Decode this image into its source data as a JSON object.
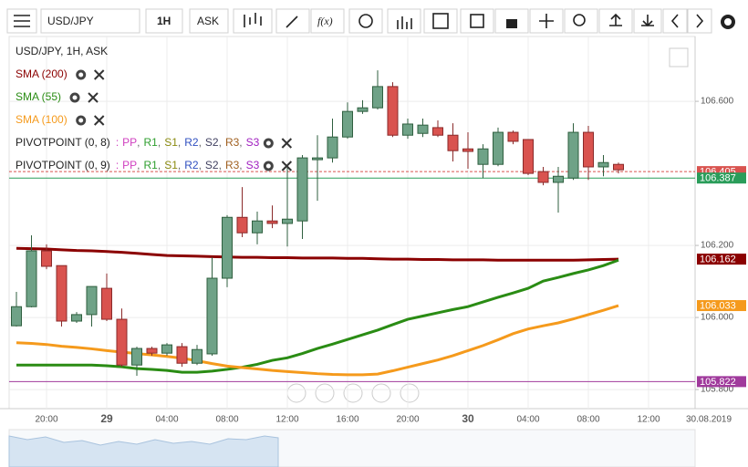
{
  "toolbar": {
    "symbol": "USD/JPY",
    "interval": "1H",
    "side": "ASK",
    "fx": "f(x)"
  },
  "chart_data": {
    "type": "candlestick",
    "title": "USD/JPY, 1H, ASK",
    "categories": [
      null,
      null,
      "20:00",
      null,
      null,
      null,
      "29",
      null,
      null,
      null,
      "04:00",
      null,
      null,
      null,
      "08:00",
      null,
      null,
      null,
      "12:00",
      null,
      null,
      null,
      "16:00",
      null,
      null,
      null,
      "20:00",
      null,
      null,
      null,
      "30",
      null,
      null,
      null,
      "04:00",
      null,
      null,
      null,
      "08:00",
      null,
      null,
      null,
      "12:00",
      null,
      null,
      null,
      "30.08.2019"
    ],
    "open": [
      105.977,
      106.03,
      106.185,
      106.144,
      105.99,
      106.008,
      106.081,
      105.995,
      105.868,
      105.914,
      105.901,
      105.919,
      105.873,
      105.899,
      106.109,
      106.278,
      106.235,
      106.268,
      106.261,
      106.268,
      106.438,
      106.443,
      106.501,
      106.572,
      106.582,
      106.641,
      106.506,
      106.511,
      106.527,
      106.506,
      106.468,
      106.425,
      106.425,
      106.514,
      106.494,
      106.405,
      106.375,
      106.387,
      106.514,
      106.418,
      106.425,
      null,
      null,
      null,
      null,
      null,
      null
    ],
    "high": [
      106.071,
      106.228,
      106.203,
      106.144,
      106.015,
      106.086,
      106.122,
      106.025,
      105.919,
      105.919,
      105.929,
      105.929,
      105.924,
      106.167,
      106.284,
      106.362,
      106.294,
      106.311,
      106.418,
      106.451,
      106.506,
      106.552,
      106.597,
      106.603,
      106.686,
      106.653,
      106.552,
      106.552,
      106.547,
      106.539,
      106.514,
      106.481,
      106.527,
      106.519,
      106.494,
      106.418,
      106.418,
      106.539,
      106.532,
      106.451,
      106.43,
      null,
      null,
      null,
      null,
      null,
      null
    ],
    "low": [
      105.975,
      106.028,
      106.134,
      105.975,
      105.985,
      105.975,
      105.99,
      105.863,
      105.838,
      105.894,
      105.894,
      105.863,
      105.868,
      105.894,
      106.084,
      106.223,
      106.203,
      106.248,
      106.197,
      106.218,
      106.324,
      106.43,
      106.496,
      106.565,
      106.577,
      106.501,
      106.496,
      106.501,
      106.501,
      106.433,
      106.413,
      106.387,
      106.42,
      106.481,
      106.395,
      106.367,
      106.291,
      106.382,
      106.382,
      106.392,
      106.4,
      null,
      null,
      null,
      null,
      null,
      null
    ],
    "close": [
      106.03,
      106.185,
      106.142,
      105.99,
      106.008,
      106.086,
      105.995,
      105.868,
      105.914,
      105.901,
      105.924,
      105.873,
      105.911,
      106.109,
      106.278,
      106.235,
      106.268,
      106.261,
      106.273,
      106.443,
      106.443,
      106.501,
      106.572,
      106.582,
      106.641,
      106.506,
      106.537,
      106.534,
      106.506,
      106.463,
      106.461,
      106.468,
      106.514,
      106.489,
      106.4,
      106.375,
      106.392,
      106.514,
      106.418,
      106.43,
      106.41,
      null,
      null,
      null,
      null,
      null,
      null
    ],
    "up_color": "#6fa287",
    "down_color": "#d9534f",
    "series": [
      {
        "name": "SMA (200)",
        "color": "#8b0000",
        "values": [
          106.192,
          106.191,
          106.19,
          106.188,
          106.186,
          106.185,
          106.183,
          106.181,
          106.178,
          106.175,
          106.172,
          106.171,
          106.17,
          106.169,
          106.168,
          106.167,
          106.167,
          106.166,
          106.166,
          106.165,
          106.165,
          106.165,
          106.164,
          106.164,
          106.163,
          106.162,
          106.162,
          106.161,
          106.161,
          106.16,
          106.16,
          106.16,
          106.159,
          106.159,
          106.159,
          106.159,
          106.159,
          106.159,
          106.16,
          106.161,
          106.162,
          null,
          null,
          null,
          null,
          null,
          null
        ]
      },
      {
        "name": "SMA (55)",
        "color": "#2a8c14",
        "values": [
          105.868,
          105.868,
          105.868,
          105.868,
          105.868,
          105.868,
          105.866,
          105.863,
          105.858,
          105.856,
          105.853,
          105.848,
          105.848,
          105.851,
          105.856,
          105.862,
          105.87,
          105.881,
          105.888,
          105.9,
          105.914,
          105.926,
          105.939,
          105.952,
          105.965,
          105.98,
          105.995,
          106.004,
          106.013,
          106.022,
          106.03,
          106.043,
          106.056,
          106.068,
          106.081,
          106.101,
          106.111,
          106.122,
          106.132,
          106.144,
          106.159,
          null,
          null,
          null,
          null,
          null,
          null
        ]
      },
      {
        "name": "SMA (100)",
        "color": "#f59a1c",
        "values": [
          105.93,
          105.928,
          105.925,
          105.92,
          105.917,
          105.913,
          105.908,
          105.904,
          105.9,
          105.896,
          105.892,
          105.887,
          105.88,
          105.872,
          105.865,
          105.861,
          105.857,
          105.853,
          105.85,
          105.847,
          105.844,
          105.842,
          105.841,
          105.841,
          105.843,
          105.852,
          105.862,
          105.872,
          105.882,
          105.894,
          105.908,
          105.922,
          105.938,
          105.955,
          105.968,
          105.977,
          105.985,
          105.996,
          106.008,
          106.02,
          106.033,
          null,
          null,
          null,
          null,
          null,
          null
        ]
      }
    ],
    "pivots": [
      "PIVOTPOINT (0, 8)",
      "PIVOTPOINT (0, 9)"
    ],
    "levels_prefix": ":",
    "levels_separator": ",",
    "pivot_levels": [
      {
        "name": "PP",
        "color": "#d040c0"
      },
      {
        "name": "R1",
        "color": "#2e9e2e"
      },
      {
        "name": "S1",
        "color": "#8a8a10"
      },
      {
        "name": "R2",
        "color": "#3050c0"
      },
      {
        "name": "S2",
        "color": "#404060"
      },
      {
        "name": "R3",
        "color": "#a06020"
      },
      {
        "name": "S3",
        "color": "#a020c0"
      }
    ],
    "price_markers": [
      {
        "value": 106.405,
        "color": "#d9534f",
        "line": "dashed"
      },
      {
        "value": 106.387,
        "color": "#2a9d5a",
        "line": "solid"
      },
      {
        "value": 106.162,
        "color": "#8b0000",
        "line": "none"
      },
      {
        "value": 106.033,
        "color": "#f59a1c",
        "line": "none"
      },
      {
        "value": 105.822,
        "color": "#a03a9c",
        "line": "solid"
      }
    ],
    "ylim": [
      105.747,
      106.78
    ],
    "yticks": [
      {
        "value": 105.8,
        "label": "105.800"
      },
      {
        "value": 106,
        "label": "106.000"
      },
      {
        "value": 106.2,
        "label": "106.200"
      },
      {
        "value": 106.6,
        "label": "106.600"
      }
    ],
    "grid": true
  }
}
